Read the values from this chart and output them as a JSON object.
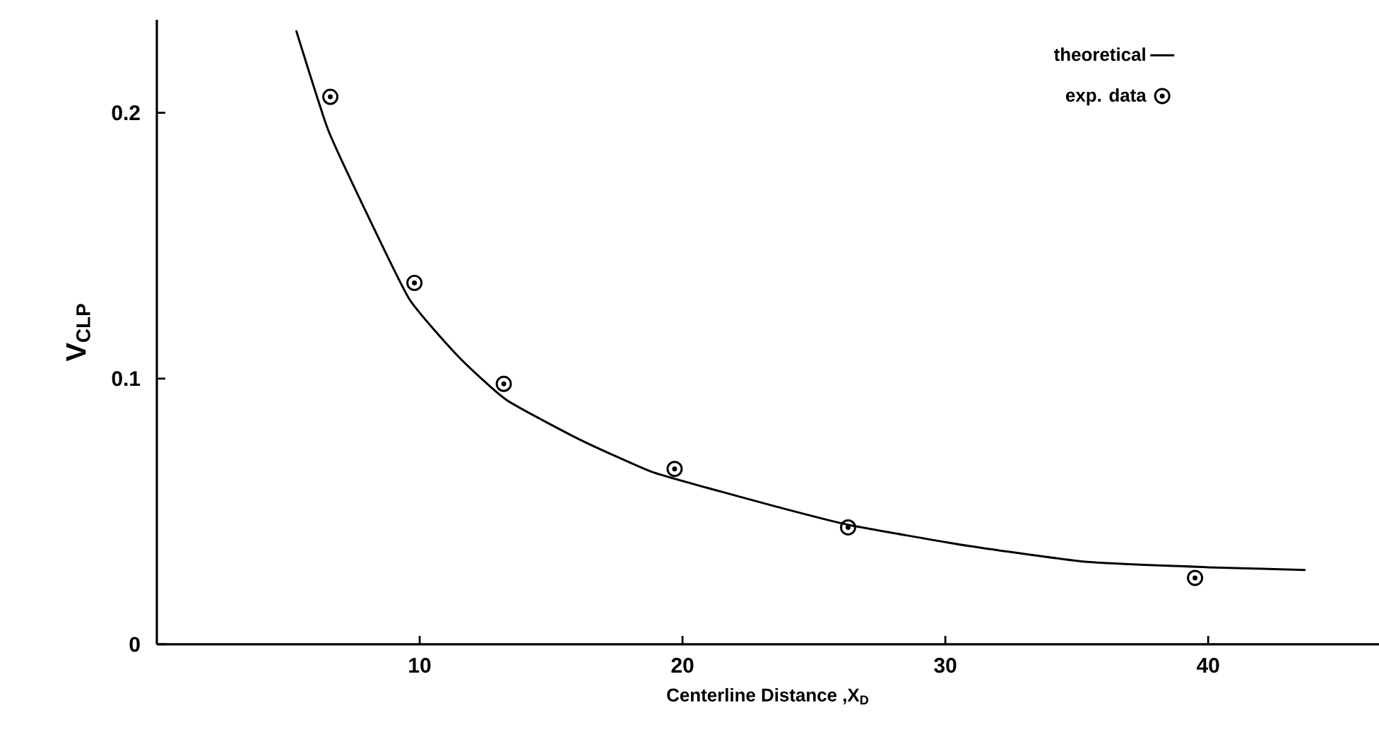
{
  "chart_data": {
    "type": "line",
    "xlabel": "Centerline Distance ,X$_{D}$",
    "ylabel": "V$_{CLP}$",
    "xlim": [
      0,
      46.5
    ],
    "ylim": [
      0,
      0.235
    ],
    "xticks": [
      10,
      20,
      30,
      40
    ],
    "yticks": [
      0,
      0.1,
      0.2
    ],
    "legend": "top right",
    "series": [
      {
        "name": "theoretical",
        "color": "#000000",
        "marker": "none",
        "line_style": "solid",
        "x": [
          5.3,
          6.5,
          7.8,
          9.6,
          11.5,
          13.3,
          16.1,
          18.8,
          20.9,
          23.5,
          26.3,
          30.9,
          35.4,
          40.0,
          43.7
        ],
        "values": [
          0.231,
          0.194,
          0.166,
          0.13,
          0.108,
          0.092,
          0.077,
          0.065,
          0.059,
          0.052,
          0.045,
          0.037,
          0.031,
          0.029,
          0.028
        ]
      },
      {
        "name": "exp. data",
        "type": "scatter",
        "color": "#000000",
        "marker": "circle",
        "x": [
          6.6,
          9.8,
          13.2,
          19.7,
          26.3,
          39.5
        ],
        "values": [
          0.206,
          0.136,
          0.098,
          0.066,
          0.044,
          0.025
        ]
      }
    ]
  }
}
